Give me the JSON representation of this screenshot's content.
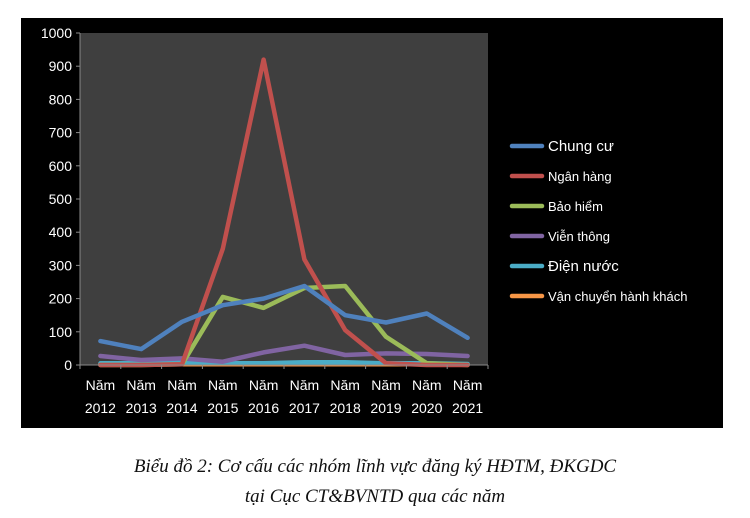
{
  "chart_data": {
    "type": "line",
    "categories": [
      "Năm 2012",
      "Năm 2013",
      "Năm 2014",
      "Năm 2015",
      "Năm 2016",
      "Năm 2017",
      "Năm 2018",
      "Năm 2019",
      "Năm 2020",
      "Năm 2021"
    ],
    "category_lines": [
      [
        "Năm",
        "2012"
      ],
      [
        "Năm",
        "2013"
      ],
      [
        "Năm",
        "2014"
      ],
      [
        "Năm",
        "2015"
      ],
      [
        "Năm",
        "2016"
      ],
      [
        "Năm",
        "2017"
      ],
      [
        "Năm",
        "2018"
      ],
      [
        "Năm",
        "2019"
      ],
      [
        "Năm",
        "2020"
      ],
      [
        "Năm",
        "2021"
      ]
    ],
    "ylim": [
      0,
      1000
    ],
    "yticks": [
      0,
      100,
      200,
      300,
      400,
      500,
      600,
      700,
      800,
      900,
      1000
    ],
    "grid": false,
    "legend_position": "right",
    "series": [
      {
        "name": "Chung cư",
        "color": "#4F81BD",
        "values": [
          72,
          48,
          130,
          180,
          200,
          238,
          150,
          128,
          155,
          82
        ]
      },
      {
        "name": "Ngân hàng",
        "color": "#C0504D",
        "values": [
          0,
          0,
          2,
          350,
          920,
          318,
          105,
          5,
          0,
          0
        ]
      },
      {
        "name": "Bảo hiểm",
        "color": "#9BBB59",
        "values": [
          0,
          0,
          2,
          205,
          172,
          232,
          238,
          85,
          5,
          0
        ]
      },
      {
        "name": "Viễn thông",
        "color": "#8064A2",
        "values": [
          27,
          15,
          20,
          10,
          38,
          58,
          30,
          35,
          33,
          27
        ]
      },
      {
        "name": "Điện nước",
        "color": "#4BACC6",
        "values": [
          5,
          5,
          8,
          5,
          5,
          8,
          8,
          5,
          5,
          3
        ]
      },
      {
        "name": "Vận chuyển hành khách",
        "color": "#F79646",
        "values": [
          2,
          2,
          2,
          2,
          2,
          2,
          2,
          2,
          2,
          2
        ]
      }
    ]
  },
  "caption": {
    "line1": "Biểu đồ 2: Cơ cấu các nhóm lĩnh vực đăng ký HĐTM, ĐKGDC",
    "line2": "tại Cục CT&BVNTD qua các năm"
  }
}
